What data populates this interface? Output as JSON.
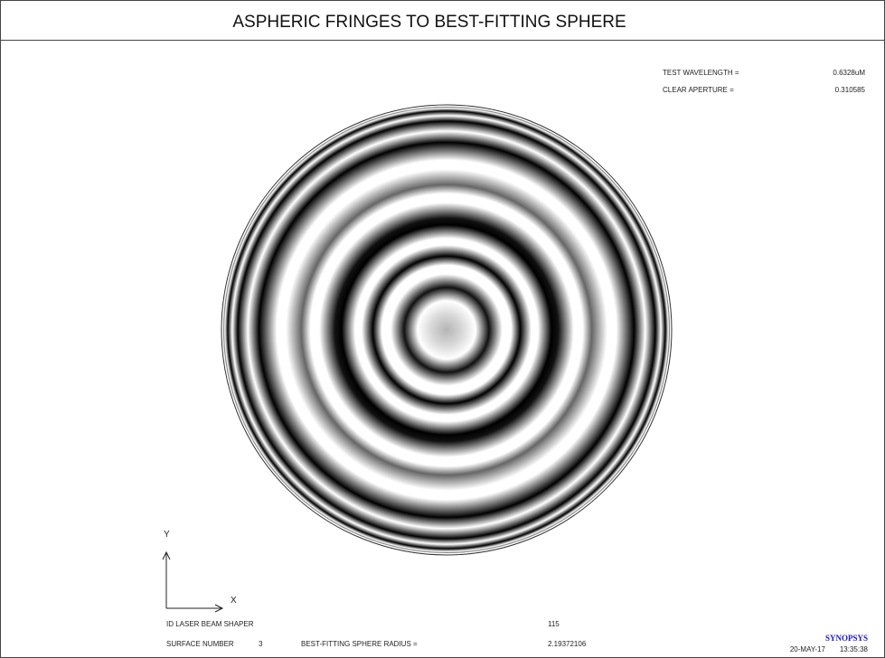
{
  "header": {
    "title": "ASPHERIC FRINGES TO BEST-FITTING SPHERE"
  },
  "info": {
    "wavelength_label": "TEST WAVELENGTH =",
    "wavelength_value": "0.6328uM",
    "aperture_label": "CLEAR APERTURE =",
    "aperture_value": "0.310585"
  },
  "axes": {
    "y": "Y",
    "x": "X"
  },
  "footer": {
    "lens_id": "ID LASER BEAM SHAPER",
    "lens_number": "115",
    "surface_label": "SURFACE NUMBER",
    "surface_value": "3",
    "radius_label": "BEST-FITTING SPHERE RADIUS =",
    "radius_value": "2.19372106",
    "brand": "SYNOPSYS",
    "date": "20-MAY-17",
    "time": "13:35:38"
  }
}
